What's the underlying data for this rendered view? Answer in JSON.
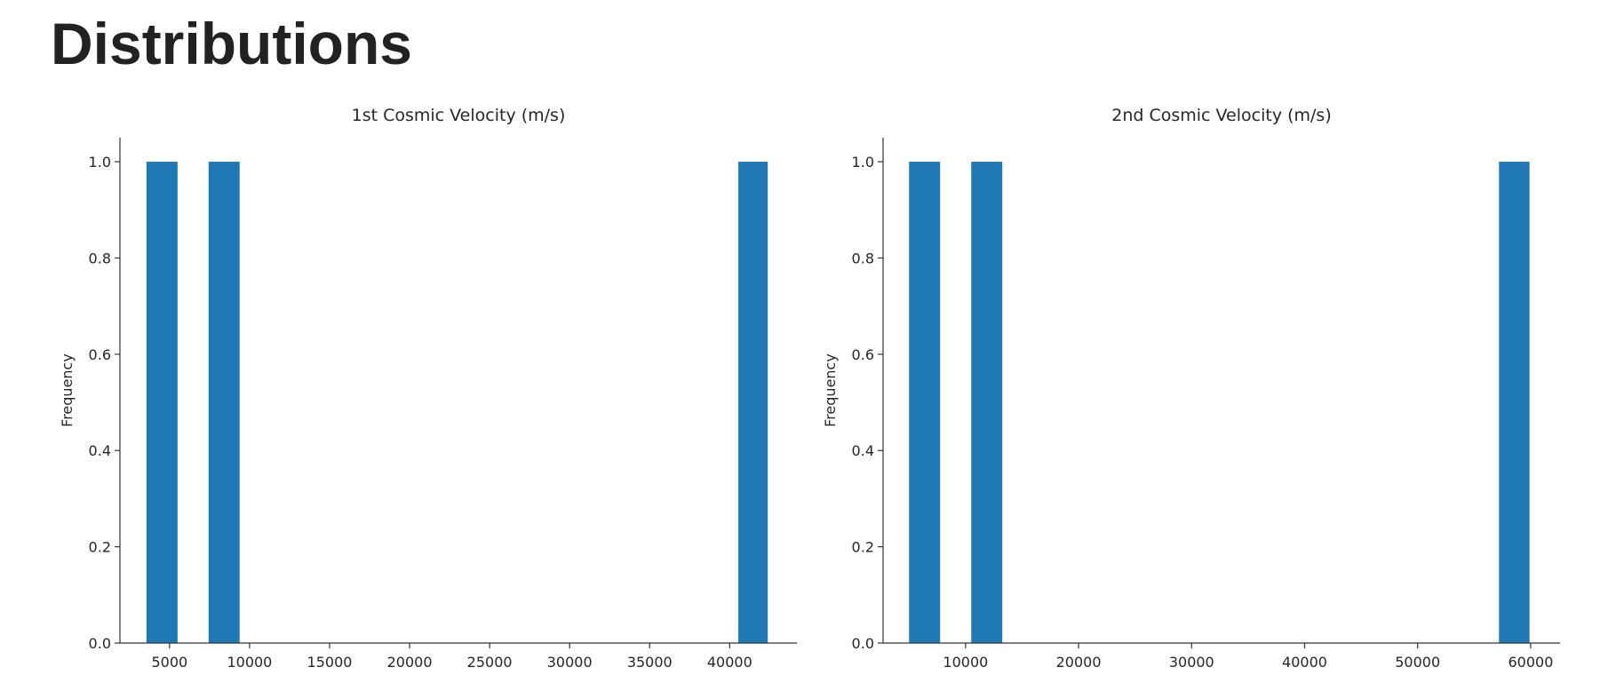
{
  "page": {
    "heading": "Distributions"
  },
  "chart_data": [
    {
      "type": "bar",
      "title": "1st Cosmic Velocity (m/s)",
      "xlabel": "",
      "ylabel": "Frequency",
      "xlim": [
        1900,
        44200
      ],
      "ylim": [
        0,
        1.05
      ],
      "xticks": [
        5000,
        10000,
        15000,
        20000,
        25000,
        30000,
        35000,
        40000
      ],
      "yticks": [
        0.0,
        0.2,
        0.4,
        0.6,
        0.8,
        1.0
      ],
      "ytick_labels": [
        "0.0",
        "0.2",
        "0.4",
        "0.6",
        "0.8",
        "1.0"
      ],
      "bars": [
        {
          "x0": 3560,
          "x1": 5500,
          "value": 1
        },
        {
          "x0": 7440,
          "x1": 9380,
          "value": 1
        },
        {
          "x0": 40540,
          "x1": 42380,
          "value": 1
        }
      ],
      "color": "#1f77b4",
      "grid": false
    },
    {
      "type": "bar",
      "title": "2nd Cosmic Velocity (m/s)",
      "xlabel": "",
      "ylabel": "Frequency",
      "xlim": [
        2700,
        62600
      ],
      "ylim": [
        0,
        1.05
      ],
      "xticks": [
        10000,
        20000,
        30000,
        40000,
        50000,
        60000
      ],
      "yticks": [
        0.0,
        0.2,
        0.4,
        0.6,
        0.8,
        1.0
      ],
      "ytick_labels": [
        "0.0",
        "0.2",
        "0.4",
        "0.6",
        "0.8",
        "1.0"
      ],
      "bars": [
        {
          "x0": 5000,
          "x1": 7750,
          "value": 1
        },
        {
          "x0": 10500,
          "x1": 13250,
          "value": 1
        },
        {
          "x0": 57200,
          "x1": 59900,
          "value": 1
        }
      ],
      "color": "#1f77b4",
      "grid": false
    }
  ]
}
